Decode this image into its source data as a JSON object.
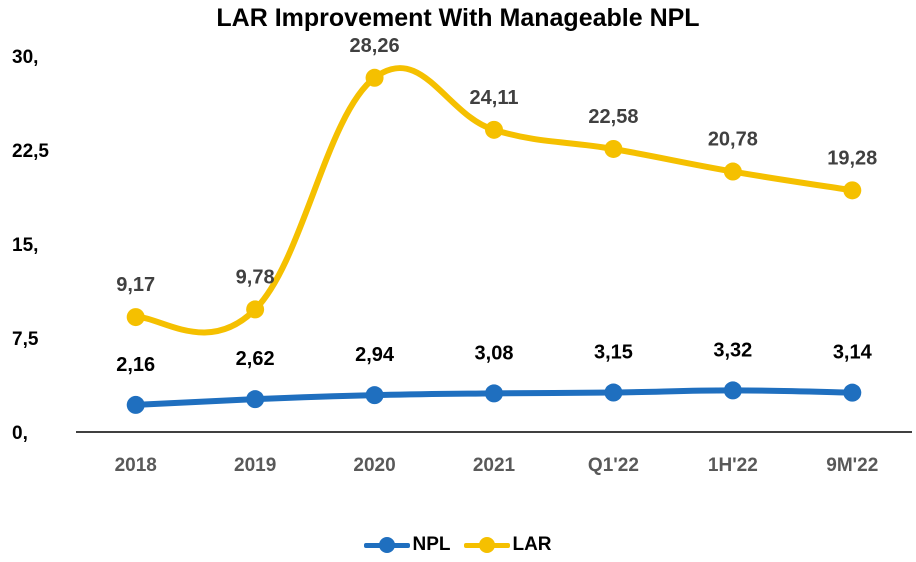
{
  "chart_data": {
    "type": "line",
    "title": "LAR Improvement With Manageable NPL",
    "xlabel": "",
    "ylabel": "",
    "categories": [
      "2018",
      "2019",
      "2020",
      "2021",
      "Q1'22",
      "1H'22",
      "9M'22"
    ],
    "ylim": [
      0,
      30
    ],
    "yticks": [
      "0,",
      "7,5",
      "15,",
      "22,5",
      "30,"
    ],
    "ytick_values": [
      0,
      7.5,
      15,
      22.5,
      30
    ],
    "grid": false,
    "legend_position": "bottom",
    "series": [
      {
        "name": "NPL",
        "color": "#1F6FBF",
        "values": [
          2.16,
          2.62,
          2.94,
          3.08,
          3.15,
          3.32,
          3.14
        ],
        "labels": [
          "2,16",
          "2,62",
          "2,94",
          "3,08",
          "3,15",
          "3,32",
          "3,14"
        ],
        "label_color": "#000000"
      },
      {
        "name": "LAR",
        "color": "#F5C000",
        "values": [
          9.17,
          9.78,
          28.26,
          24.11,
          22.58,
          20.78,
          19.28
        ],
        "labels": [
          "9,17",
          "9,78",
          "28,26",
          "24,11",
          "22,58",
          "20,78",
          "19,28"
        ],
        "label_color": "#404040"
      }
    ]
  }
}
